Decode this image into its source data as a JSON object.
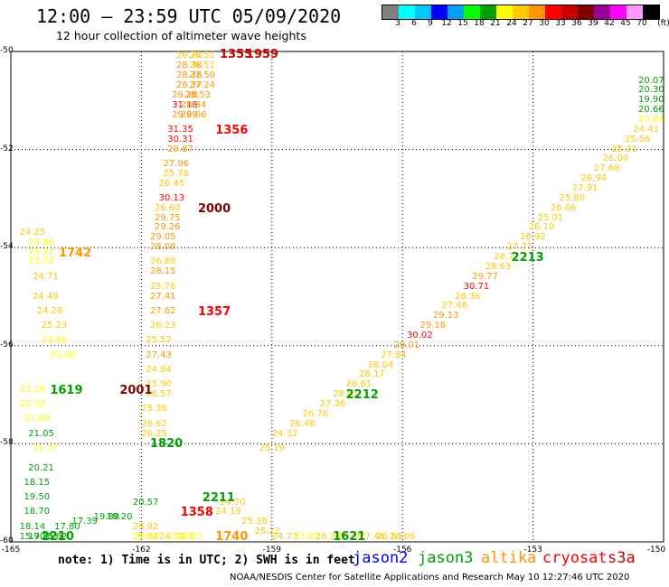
{
  "header": {
    "title": "12:00 – 23:59 UTC 05/09/2020",
    "subtitle": "12 hour collection of altimeter wave heights"
  },
  "legend": {
    "colors": [
      "#808080",
      "#00ffff",
      "#00c8ff",
      "#0000ff",
      "#00a0ff",
      "#00ff00",
      "#00a000",
      "#ffff00",
      "#ffc800",
      "#ff9600",
      "#ff0000",
      "#c80000",
      "#800000",
      "#990099",
      "#ff00ff",
      "#ff99ff",
      "#000000"
    ],
    "ticks": [
      "3",
      "6",
      "9",
      "12",
      "15",
      "18",
      "21",
      "24",
      "27",
      "30",
      "33",
      "36",
      "39",
      "42",
      "45",
      "70",
      "(ft)"
    ]
  },
  "axes": {
    "lat_labels": [
      "-50",
      "-52",
      "-54",
      "-56",
      "-58",
      "-60"
    ],
    "lon_labels": [
      "-165",
      "-162",
      "-159",
      "-156",
      "-153",
      "-150"
    ],
    "lat_range": [
      -60,
      -50
    ],
    "lon_range": [
      -165,
      -150
    ]
  },
  "map_data": {
    "tracks": [
      {
        "satellite": "altika",
        "points": [
          {
            "lon": -161.2,
            "lat": -50.1,
            "v": "26.74"
          },
          {
            "lon": -160.9,
            "lat": -50.1,
            "v": "26.51"
          },
          {
            "lon": -161.2,
            "lat": -50.3,
            "v": "28.38"
          },
          {
            "lon": -160.9,
            "lat": -50.3,
            "v": "26.51"
          },
          {
            "lon": -161.2,
            "lat": -50.5,
            "v": "28.38"
          },
          {
            "lon": -160.9,
            "lat": -50.5,
            "v": "27.50"
          },
          {
            "lon": -161.2,
            "lat": -50.7,
            "v": "28.37"
          },
          {
            "lon": -160.9,
            "lat": -50.7,
            "v": "27.24"
          },
          {
            "lon": -161.3,
            "lat": -50.9,
            "v": "29.28"
          },
          {
            "lon": -161.0,
            "lat": -50.9,
            "v": "28.53"
          },
          {
            "lon": -161.3,
            "lat": -51.1,
            "v": "31.18"
          },
          {
            "lon": -161.1,
            "lat": -51.1,
            "v": "28.84"
          },
          {
            "lon": -161.3,
            "lat": -51.3,
            "v": "29.89"
          },
          {
            "lon": -161.1,
            "lat": -51.3,
            "v": "29.06"
          },
          {
            "lon": -161.4,
            "lat": -51.6,
            "v": "31.35"
          },
          {
            "lon": -161.4,
            "lat": -51.8,
            "v": "30.31"
          },
          {
            "lon": -161.4,
            "lat": -52.0,
            "v": "29.87"
          },
          {
            "lon": -161.5,
            "lat": -52.3,
            "v": "27.96"
          },
          {
            "lon": -161.5,
            "lat": -52.5,
            "v": "25.78"
          },
          {
            "lon": -161.6,
            "lat": -52.7,
            "v": "26.45"
          },
          {
            "lon": -161.6,
            "lat": -53.0,
            "v": "30.13"
          },
          {
            "lon": -161.7,
            "lat": -53.2,
            "v": "26.60"
          },
          {
            "lon": -161.7,
            "lat": -53.4,
            "v": "29.75"
          },
          {
            "lon": -161.7,
            "lat": -53.6,
            "v": "29.26"
          },
          {
            "lon": -161.8,
            "lat": -53.8,
            "v": "29.05"
          },
          {
            "lon": -161.8,
            "lat": -54.0,
            "v": "28.08"
          },
          {
            "lon": -161.8,
            "lat": -54.3,
            "v": "26.88"
          },
          {
            "lon": -161.8,
            "lat": -54.5,
            "v": "28.15"
          },
          {
            "lon": -161.8,
            "lat": -54.8,
            "v": "25.76"
          },
          {
            "lon": -161.8,
            "lat": -55.0,
            "v": "27.41"
          },
          {
            "lon": -161.8,
            "lat": -55.3,
            "v": "27.62"
          },
          {
            "lon": -161.8,
            "lat": -55.6,
            "v": "26.23"
          },
          {
            "lon": -161.9,
            "lat": -55.9,
            "v": "25.52"
          },
          {
            "lon": -161.9,
            "lat": -56.2,
            "v": "27.43"
          },
          {
            "lon": -161.9,
            "lat": -56.5,
            "v": "24.84"
          },
          {
            "lon": -161.9,
            "lat": -56.8,
            "v": "25.90"
          },
          {
            "lon": -161.9,
            "lat": -57.0,
            "v": "26.57"
          },
          {
            "lon": -162.0,
            "lat": -57.3,
            "v": "25.36"
          },
          {
            "lon": -162.0,
            "lat": -57.6,
            "v": "26.62"
          },
          {
            "lon": -162.0,
            "lat": -57.8,
            "v": "26.25"
          }
        ]
      }
    ],
    "time_labels": [
      {
        "lon": -160.2,
        "lat": -50.05,
        "t": "1355",
        "color": "#c80000"
      },
      {
        "lon": -159.6,
        "lat": -50.05,
        "t": "1959",
        "color": "#c80000"
      },
      {
        "lon": -160.3,
        "lat": -51.6,
        "t": "1356",
        "color": "#ff0000"
      },
      {
        "lon": -160.7,
        "lat": -53.2,
        "t": "2000",
        "color": "#800000"
      },
      {
        "lon": -160.7,
        "lat": -55.3,
        "t": "1357",
        "color": "#ff0000"
      },
      {
        "lon": -163.9,
        "lat": -54.1,
        "t": "1742",
        "color": "#ff9600"
      },
      {
        "lon": -162.5,
        "lat": -56.9,
        "t": "2001",
        "color": "#800000"
      },
      {
        "lon": -164.1,
        "lat": -56.9,
        "t": "1619",
        "color": "#00a000"
      },
      {
        "lon": -161.8,
        "lat": -58.0,
        "t": "1820",
        "color": "#00a000"
      },
      {
        "lon": -160.6,
        "lat": -59.1,
        "t": "2211",
        "color": "#00a000"
      },
      {
        "lon": -161.1,
        "lat": -59.4,
        "t": "1358",
        "color": "#ff0000"
      },
      {
        "lon": -164.3,
        "lat": -60.4,
        "t": "2210",
        "color": "#00a000"
      },
      {
        "lon": -160.3,
        "lat": -60.4,
        "t": "1740",
        "color": "#ff9600"
      },
      {
        "lon": -157.3,
        "lat": -57.0,
        "t": "2212",
        "color": "#00a000"
      },
      {
        "lon": -157.6,
        "lat": -60.2,
        "t": "1621",
        "color": "#00a000"
      },
      {
        "lon": -153.5,
        "lat": -54.2,
        "t": "2213",
        "color": "#00a000"
      }
    ],
    "extra_values": [
      {
        "lon": -164.8,
        "lat": -53.7,
        "v": "24.25",
        "c": "#ffc800"
      },
      {
        "lon": -164.6,
        "lat": -53.9,
        "v": "23.86",
        "c": "#ffff00"
      },
      {
        "lon": -164.6,
        "lat": -54.1,
        "v": "23.27",
        "c": "#ffff00"
      },
      {
        "lon": -164.6,
        "lat": -54.3,
        "v": "23.72",
        "c": "#ffff00"
      },
      {
        "lon": -164.5,
        "lat": -54.6,
        "v": "24.71",
        "c": "#ffc800"
      },
      {
        "lon": -164.5,
        "lat": -55.0,
        "v": "24.49",
        "c": "#ffc800"
      },
      {
        "lon": -164.4,
        "lat": -55.3,
        "v": "24.29",
        "c": "#ffc800"
      },
      {
        "lon": -164.3,
        "lat": -55.6,
        "v": "25.23",
        "c": "#ffc800"
      },
      {
        "lon": -164.3,
        "lat": -55.9,
        "v": "23.96",
        "c": "#ffff00"
      },
      {
        "lon": -164.1,
        "lat": -56.2,
        "v": "23.90",
        "c": "#ffff00"
      },
      {
        "lon": -164.8,
        "lat": -56.9,
        "v": "23.26",
        "c": "#ffff00"
      },
      {
        "lon": -164.8,
        "lat": -57.2,
        "v": "22.02",
        "c": "#ffff00"
      },
      {
        "lon": -164.7,
        "lat": -57.5,
        "v": "22.68",
        "c": "#ffff00"
      },
      {
        "lon": -164.6,
        "lat": -57.8,
        "v": "21.05",
        "c": "#00a000"
      },
      {
        "lon": -164.5,
        "lat": -58.1,
        "v": "21.37",
        "c": "#ffff00"
      },
      {
        "lon": -164.6,
        "lat": -58.5,
        "v": "20.21",
        "c": "#00a000"
      },
      {
        "lon": -164.7,
        "lat": -58.8,
        "v": "18.15",
        "c": "#00a000"
      },
      {
        "lon": -164.7,
        "lat": -59.1,
        "v": "19.50",
        "c": "#00a000"
      },
      {
        "lon": -164.7,
        "lat": -59.4,
        "v": "18.70",
        "c": "#00a000"
      },
      {
        "lon": -164.8,
        "lat": -59.7,
        "v": "18.14",
        "c": "#00a000"
      },
      {
        "lon": -164.0,
        "lat": -59.7,
        "v": "17.80",
        "c": "#00a000"
      },
      {
        "lon": -163.6,
        "lat": -59.6,
        "v": "17.39",
        "c": "#00a000"
      },
      {
        "lon": -163.1,
        "lat": -59.5,
        "v": "19.80",
        "c": "#00a000"
      },
      {
        "lon": -164.3,
        "lat": -60.3,
        "v": "18.62",
        "c": "#00a000"
      },
      {
        "lon": -164.8,
        "lat": -60.4,
        "v": "15.90",
        "c": "#00a000"
      },
      {
        "lon": -164.6,
        "lat": -60.2,
        "v": "17.35",
        "c": "#00a000"
      },
      {
        "lon": -162.8,
        "lat": -59.5,
        "v": "19.20",
        "c": "#00a000"
      },
      {
        "lon": -162.2,
        "lat": -59.2,
        "v": "20.57",
        "c": "#00a000"
      },
      {
        "lon": -162.2,
        "lat": -59.7,
        "v": "24.92",
        "c": "#ffc800"
      },
      {
        "lon": -162.2,
        "lat": -60.0,
        "v": "25.04",
        "c": "#ffc800"
      },
      {
        "lon": -162.2,
        "lat": -60.3,
        "v": "23.84",
        "c": "#ffff00"
      },
      {
        "lon": -162.2,
        "lat": -60.6,
        "v": "25.32",
        "c": "#ffc800"
      },
      {
        "lon": -162.2,
        "lat": -60.9,
        "v": "23.84",
        "c": "#ffff00"
      },
      {
        "lon": -161.6,
        "lat": -59.9,
        "v": "24.32",
        "c": "#ffc800"
      },
      {
        "lon": -161.4,
        "lat": -60.2,
        "v": "23.83",
        "c": "#ffff00"
      },
      {
        "lon": -161.4,
        "lat": -60.6,
        "v": "23.31",
        "c": "#ffff00"
      },
      {
        "lon": -161.2,
        "lat": -60.9,
        "v": "22.67",
        "c": "#ffff00"
      },
      {
        "lon": -160.2,
        "lat": -59.2,
        "v": "24.70",
        "c": "#ffc800"
      },
      {
        "lon": -160.3,
        "lat": -59.4,
        "v": "24.19",
        "c": "#ffc800"
      },
      {
        "lon": -159.7,
        "lat": -59.6,
        "v": "25.38",
        "c": "#ffc800"
      },
      {
        "lon": -159.4,
        "lat": -59.8,
        "v": "25.22",
        "c": "#ffc800"
      },
      {
        "lon": -159.0,
        "lat": -60.0,
        "v": "24.73",
        "c": "#ffc800"
      },
      {
        "lon": -158.5,
        "lat": -60.2,
        "v": "23.82",
        "c": "#ffff00"
      },
      {
        "lon": -158.0,
        "lat": -60.4,
        "v": "26.21",
        "c": "#ffc800"
      },
      {
        "lon": -157.5,
        "lat": -60.6,
        "v": "26.85",
        "c": "#ffc800"
      },
      {
        "lon": -157.0,
        "lat": -60.7,
        "v": "27.46",
        "c": "#ffc800"
      },
      {
        "lon": -156.6,
        "lat": -60.9,
        "v": "26.53",
        "c": "#ffc800"
      },
      {
        "lon": -156.3,
        "lat": -61.0,
        "v": "26.06",
        "c": "#ffc800"
      },
      {
        "lon": -159.3,
        "lat": -58.1,
        "v": "25.19",
        "c": "#ffc800"
      },
      {
        "lon": -159.0,
        "lat": -57.8,
        "v": "24.32",
        "c": "#ffc800"
      },
      {
        "lon": -158.6,
        "lat": -57.6,
        "v": "26.48",
        "c": "#ffc800"
      },
      {
        "lon": -158.3,
        "lat": -57.4,
        "v": "26.76",
        "c": "#ffc800"
      },
      {
        "lon": -157.9,
        "lat": -57.2,
        "v": "27.36",
        "c": "#ffc800"
      },
      {
        "lon": -157.6,
        "lat": -57.0,
        "v": "28.01",
        "c": "#ffc800"
      },
      {
        "lon": -157.3,
        "lat": -56.8,
        "v": "26.61",
        "c": "#ffc800"
      },
      {
        "lon": -157.0,
        "lat": -56.6,
        "v": "28.17",
        "c": "#ffc800"
      },
      {
        "lon": -156.8,
        "lat": -56.4,
        "v": "28.04",
        "c": "#ffc800"
      },
      {
        "lon": -156.5,
        "lat": -56.2,
        "v": "27.84",
        "c": "#ffc800"
      },
      {
        "lon": -156.2,
        "lat": -56.0,
        "v": "29.01",
        "c": "#ff9600"
      },
      {
        "lon": -155.9,
        "lat": -55.8,
        "v": "30.02",
        "c": "#ff0000"
      },
      {
        "lon": -155.6,
        "lat": -55.6,
        "v": "29.18",
        "c": "#ff9600"
      },
      {
        "lon": -155.3,
        "lat": -55.4,
        "v": "29.13",
        "c": "#ff9600"
      },
      {
        "lon": -155.1,
        "lat": -55.2,
        "v": "27.46",
        "c": "#ffc800"
      },
      {
        "lon": -154.8,
        "lat": -55.0,
        "v": "28.36",
        "c": "#ffc800"
      },
      {
        "lon": -154.6,
        "lat": -54.8,
        "v": "30.71",
        "c": "#ff0000"
      },
      {
        "lon": -154.4,
        "lat": -54.6,
        "v": "29.77",
        "c": "#ff9600"
      },
      {
        "lon": -154.1,
        "lat": -54.4,
        "v": "28.63",
        "c": "#ffc800"
      },
      {
        "lon": -153.9,
        "lat": -54.2,
        "v": "28.77",
        "c": "#ffc800"
      },
      {
        "lon": -153.6,
        "lat": -54.0,
        "v": "27.77",
        "c": "#ffc800"
      },
      {
        "lon": -153.3,
        "lat": -53.8,
        "v": "26.92",
        "c": "#ffc800"
      },
      {
        "lon": -153.1,
        "lat": -53.6,
        "v": "26.10",
        "c": "#ffc800"
      },
      {
        "lon": -152.9,
        "lat": -53.4,
        "v": "25.01",
        "c": "#ffc800"
      },
      {
        "lon": -152.6,
        "lat": -53.2,
        "v": "26.06",
        "c": "#ffc800"
      },
      {
        "lon": -152.4,
        "lat": -53.0,
        "v": "25.80",
        "c": "#ffc800"
      },
      {
        "lon": -152.1,
        "lat": -52.8,
        "v": "27.91",
        "c": "#ffc800"
      },
      {
        "lon": -151.9,
        "lat": -52.6,
        "v": "26.94",
        "c": "#ffc800"
      },
      {
        "lon": -151.6,
        "lat": -52.4,
        "v": "27.68",
        "c": "#ffc800"
      },
      {
        "lon": -151.4,
        "lat": -52.2,
        "v": "26.00",
        "c": "#ffc800"
      },
      {
        "lon": -151.2,
        "lat": -52.0,
        "v": "25.31",
        "c": "#ffc800"
      },
      {
        "lon": -150.9,
        "lat": -51.8,
        "v": "25.56",
        "c": "#ffc800"
      },
      {
        "lon": -150.7,
        "lat": -51.6,
        "v": "24.41",
        "c": "#ffc800"
      },
      {
        "lon": -150.5,
        "lat": -51.4,
        "v": "23.64",
        "c": "#ffff00"
      },
      {
        "lon": -150.3,
        "lat": -51.2,
        "v": "20.66",
        "c": "#00a000"
      },
      {
        "lon": -150.1,
        "lat": -51.0,
        "v": "19.90",
        "c": "#00a000"
      },
      {
        "lon": -150.0,
        "lat": -50.8,
        "v": "20.30",
        "c": "#00a000"
      },
      {
        "lon": -149.7,
        "lat": -50.6,
        "v": "20.07",
        "c": "#00a000"
      }
    ]
  },
  "footer": {
    "note": "note: 1) Time is in UTC; 2) SWH is in feet",
    "satellites": [
      {
        "name": "jason2",
        "color": "#0000ff"
      },
      {
        "name": "jason3",
        "color": "#00a000"
      },
      {
        "name": "altika",
        "color": "#ff9600"
      },
      {
        "name": "cryosat",
        "color": "#ff0000"
      },
      {
        "name": "s3a",
        "color": "#c80000"
      }
    ],
    "credit": "NOAA/NESDIS Center for Satellite Applications and Research    May 10 12:27:46 UTC 2020"
  }
}
